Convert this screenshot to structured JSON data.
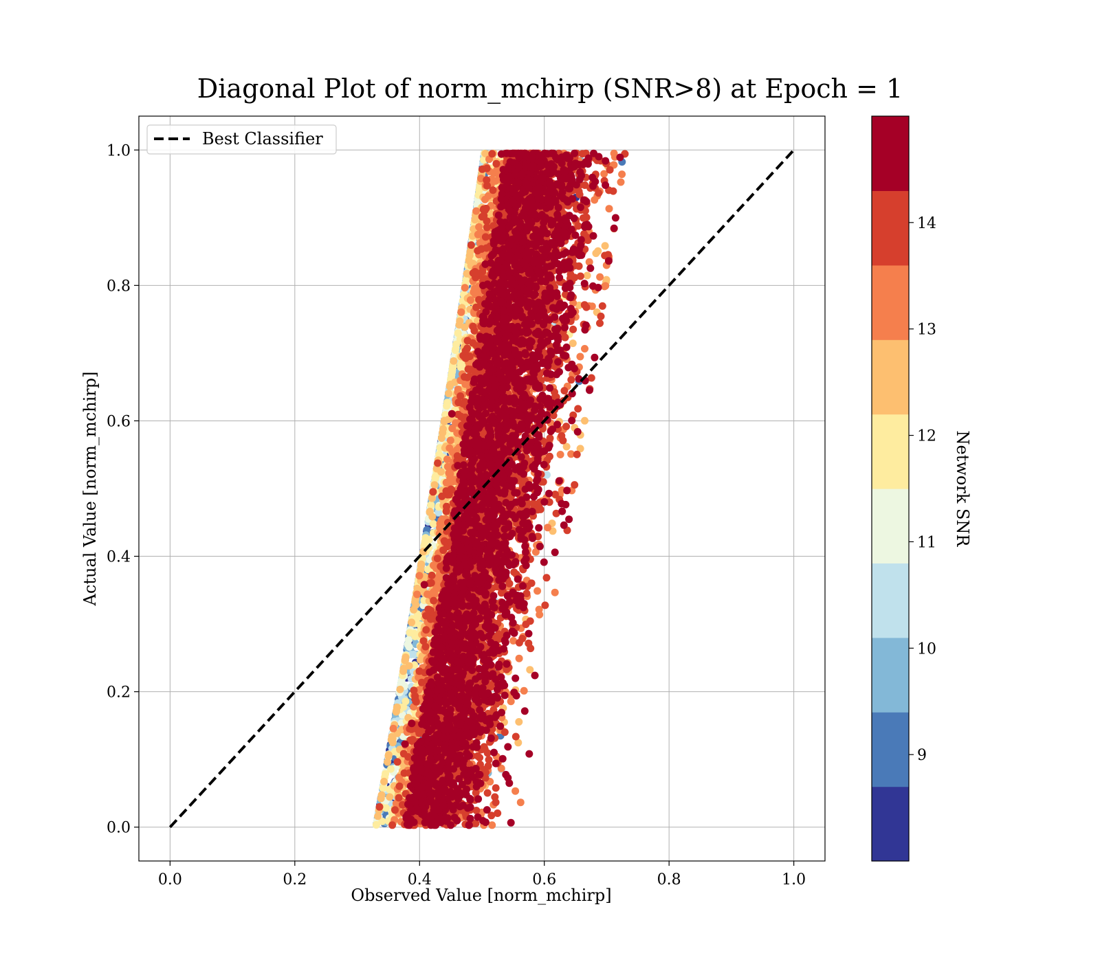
{
  "chart_data": {
    "type": "scatter",
    "title": "Diagonal Plot of norm_mchirp (SNR>8) at Epoch = 1",
    "xlabel": "Observed Value [norm_mchirp]",
    "ylabel": "Actual Value [norm_mchirp]",
    "xlim": [
      -0.05,
      1.05
    ],
    "ylim": [
      -0.05,
      1.05
    ],
    "x_ticks": [
      "0.0",
      "0.2",
      "0.4",
      "0.6",
      "0.8",
      "1.0"
    ],
    "y_ticks": [
      "0.0",
      "0.2",
      "0.4",
      "0.6",
      "0.8",
      "1.0"
    ],
    "grid": true,
    "legend": {
      "placement": "upper-left",
      "entries": [
        "Best Classifier"
      ]
    },
    "reference_line": {
      "name": "Best Classifier",
      "x": [
        0.0,
        1.0
      ],
      "y": [
        0.0,
        1.0
      ],
      "style": "dashed",
      "color": "#000000"
    },
    "colorbar": {
      "label": "Network SNR",
      "ticks": [
        "9",
        "10",
        "11",
        "12",
        "13",
        "14"
      ],
      "range": [
        8.0,
        15.0
      ],
      "colors": [
        "#313695",
        "#4a7ab8",
        "#83b8d7",
        "#c0e1ec",
        "#edf7e1",
        "#feec9f",
        "#fdbf70",
        "#f57f4d",
        "#d63f2d",
        "#a50026"
      ]
    },
    "scatter_description": {
      "points_approx": 9000,
      "x_range": [
        0.32,
        0.76
      ],
      "y_range": [
        0.0,
        1.0
      ],
      "trend": "x increases with y from about 0.40 at y=0 to about 0.58 at y=1; low-SNR points lie on the left edge of the cloud, high-SNR points dominate the core"
    }
  }
}
